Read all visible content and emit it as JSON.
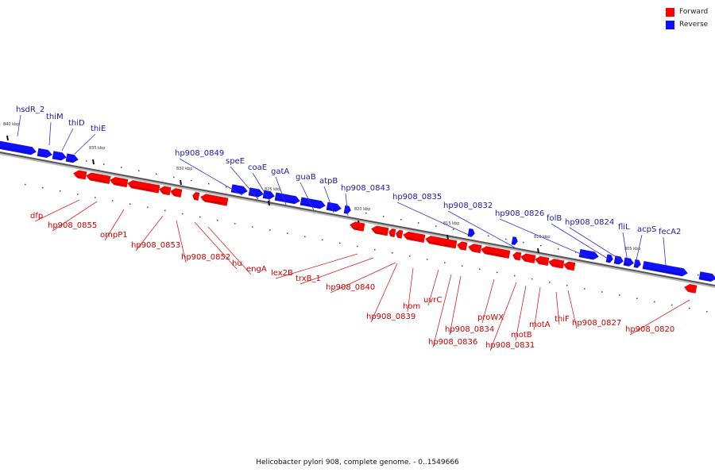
{
  "colors": {
    "forward": "#ff0000",
    "reverse": "#1010ff",
    "forward_label": "#cc0000",
    "reverse_label": "#1a1aa8"
  },
  "legend": [
    {
      "label": "Forward",
      "color": "#ff0000"
    },
    {
      "label": "Reverse",
      "color": "#1010ff"
    }
  ],
  "caption": "Helicobacter pylori 908, complete genome. - 0..1549666",
  "ticks": [
    "840 kbp",
    "835 kbp",
    "830 kbp",
    "825 kbp",
    "820 kbp",
    "815 kbp",
    "810 kbp",
    "805 kbp"
  ],
  "reverse_genes": [
    "hsdR_2",
    "thiM",
    "thiD",
    "thiE",
    "hp908_0849",
    "speE",
    "coaE",
    "gatA",
    "guaB",
    "atpB",
    "hp908_0843",
    "hp908_0835",
    "hp908_0832",
    "hp908_0826",
    "folB",
    "hp908_0824",
    "fliL",
    "acpS",
    "fecA2"
  ],
  "forward_genes": [
    "dfp",
    "hp908_0855",
    "ompP1",
    "hp908_0853",
    "hp908_0852",
    "hu",
    "engA",
    "lex2B",
    "trxB_1",
    "hp908_0840",
    "hom",
    "hp908_0839",
    "uvrC",
    "hp908_0834",
    "hp908_0836",
    "proWX",
    "motB",
    "hp908_0831",
    "motA",
    "thiF",
    "hp908_0827",
    "hp908_0820"
  ]
}
